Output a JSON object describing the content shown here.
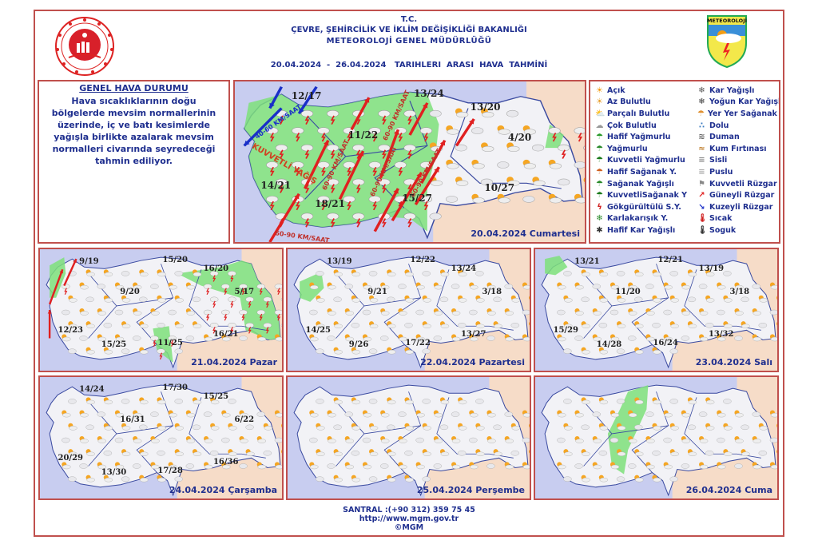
{
  "header": {
    "line1": "T.C.",
    "line2": "ÇEVRE, ŞEHİRCİLİK VE İKLİM DEĞİŞİKLİĞİ BAKANLIĞI",
    "line3": "METEOROLOJİ  GENEL  MÜDÜRLÜĞÜ",
    "period": "20.04.2024  -  26.04.2024   TARIHLERI  ARASI  HAVA  TAHMİNİ"
  },
  "logos": {
    "ministry": "T.C. Çevre, Şehircilik ve İklim Değişikliği Bakanlığı",
    "meteoroloji": "METEOROLOJİ"
  },
  "general": {
    "title": "GENEL HAVA DURUMU",
    "text": "Hava sıcaklıklarının doğu bölgelerde mevsim normallerinin üzerinde, iç ve batı kesimlerde yağışla birlikte azalarak mevsim normalleri civarında seyredeceği tahmin ediliyor."
  },
  "main_map": {
    "date": "20.04.2024 Cumartesi",
    "temps": [
      "12/17",
      "13/24",
      "13/20",
      "11/22",
      "4/20",
      "14/21",
      "18/21",
      "15/27",
      "10/27"
    ],
    "warning": "KUVVETLİ YAĞIŞ",
    "wind_labels": [
      "40-60 KM/SAAT",
      "60-90 KM/SAAT",
      "60-90 KM/SAAT",
      "60-90 KM/SAAT",
      "60-90 KM/SAAT",
      "60-90 KM/SAAT"
    ]
  },
  "legend": [
    {
      "label": "Açık",
      "icon": "sun"
    },
    {
      "label": "Az Bulutlu",
      "icon": "sun-small-cloud"
    },
    {
      "label": "Parçalı Bulutlu",
      "icon": "sun-cloud"
    },
    {
      "label": "Çok Bulutlu",
      "icon": "cloud"
    },
    {
      "label": "Hafif Yağmurlu",
      "icon": "light-rain"
    },
    {
      "label": "Yağmurlu",
      "icon": "rain"
    },
    {
      "label": "Kuvvetli Yağmurlu",
      "icon": "heavy-rain"
    },
    {
      "label": "Hafif Sağanak Y.",
      "icon": "light-shower"
    },
    {
      "label": "Sağanak Yağışlı",
      "icon": "shower"
    },
    {
      "label": "KuvvetliSağanak Y",
      "icon": "heavy-shower"
    },
    {
      "label": "Gökgürültülü S.Y.",
      "icon": "thunderstorm"
    },
    {
      "label": "Karlakarışık Y.",
      "icon": "sleet"
    },
    {
      "label": "Hafif Kar Yağışlı",
      "icon": "light-snow"
    },
    {
      "label": "Kar Yağışlı",
      "icon": "snow"
    },
    {
      "label": "Yoğun Kar Yağışlı",
      "icon": "heavy-snow"
    },
    {
      "label": "Yer Yer Sağanak Y.",
      "icon": "scattered-shower"
    },
    {
      "label": "Dolu",
      "icon": "hail"
    },
    {
      "label": "Duman",
      "icon": "smoke"
    },
    {
      "label": "Kum Fırtınası",
      "icon": "sandstorm"
    },
    {
      "label": "Sisli",
      "icon": "fog"
    },
    {
      "label": "Puslu",
      "icon": "haze"
    },
    {
      "label": "Kuvvetli Rüzgar",
      "icon": "strong-wind"
    },
    {
      "label": "Güneyli Rüzgar",
      "icon": "south-wind-arrow"
    },
    {
      "label": "Kuzeyli Rüzgar",
      "icon": "north-wind-arrow"
    },
    {
      "label": "Sıcak",
      "icon": "hot-thermometer"
    },
    {
      "label": "Soguk",
      "icon": "cold-thermometer"
    }
  ],
  "daily_maps": [
    {
      "date": "21.04.2024 Pazar",
      "temps": [
        "9/19",
        "15/20",
        "16/20",
        "9/20",
        "5/17",
        "12/23",
        "11/25",
        "16/21",
        "15/25"
      ]
    },
    {
      "date": "22.04.2024 Pazartesi",
      "temps": [
        "13/19",
        "12/22",
        "13/24",
        "9/21",
        "3/18",
        "14/25",
        "17/22",
        "13/27",
        "9/26"
      ]
    },
    {
      "date": "23.04.2024 Salı",
      "temps": [
        "13/21",
        "12/21",
        "13/19",
        "11/20",
        "3/18",
        "15/29",
        "16/24",
        "13/32",
        "14/28"
      ]
    },
    {
      "date": "24.04.2024 Çarşamba",
      "temps": [
        "14/24",
        "17/30",
        "15/25",
        "16/31",
        "6/22",
        "20/29",
        "17/28",
        "16/36",
        "13/30"
      ]
    },
    {
      "date": "25.04.2024 Perşembe",
      "temps": []
    },
    {
      "date": "26.04.2024 Cuma",
      "temps": []
    }
  ],
  "colors": {
    "border": "#c0504d",
    "text": "#1f2f8f",
    "sea": "#c8cdf0",
    "land": "#f2f2f6",
    "rain_area": "#7ee07a",
    "outside": "#f6dcc8",
    "wind_south": "#e02020",
    "wind_north": "#1a2fc8"
  },
  "footer": {
    "phone": "SANTRAL :(+90 312) 359 75 45",
    "url": "http://www.mgm.gov.tr",
    "copyright": "©MGM"
  }
}
